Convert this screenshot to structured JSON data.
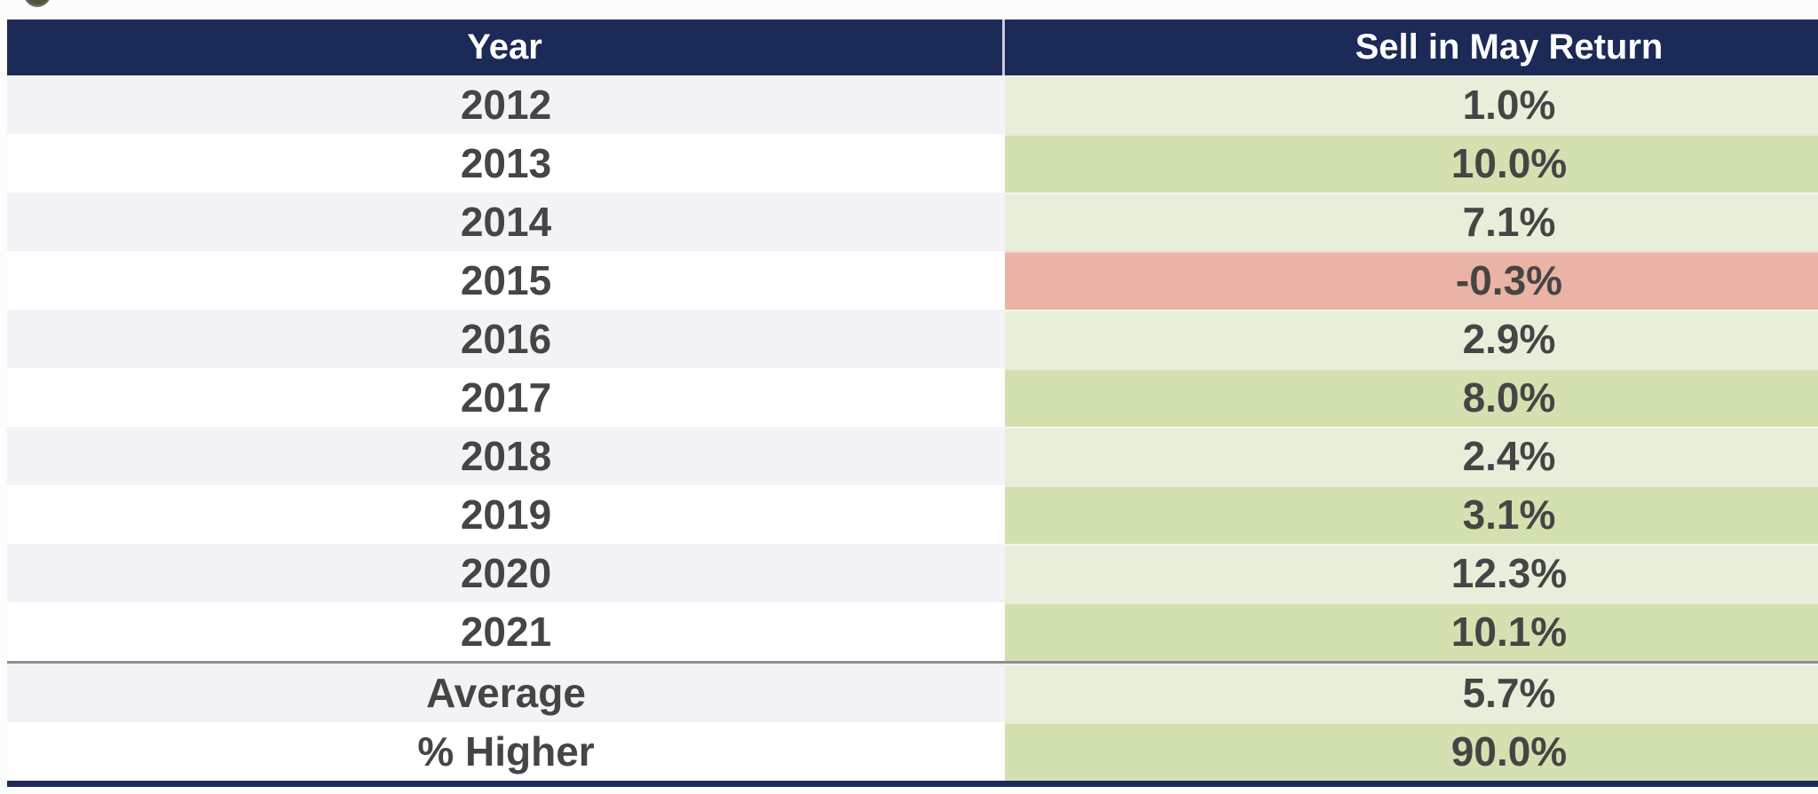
{
  "theme": {
    "page-bg": "#fcfcfd",
    "navy": "#1b2a57",
    "header-text": "#ffffff",
    "row-stripe": "#f3f3f7",
    "row-plain": "#ffffff",
    "green-light": "#e7efda",
    "green-dark": "#d3e1b1",
    "red": "#eab3a6",
    "cell-text": "#454545",
    "divider": "#8f8f93",
    "circle": "#50533e"
  },
  "table": {
    "headers": {
      "year": "Year",
      "value": "Sell in May Return"
    },
    "rows": [
      {
        "year": "2012",
        "value": "1.0%",
        "ybg": "stripe",
        "vtone": "green-light"
      },
      {
        "year": "2013",
        "value": "10.0%",
        "ybg": "plain",
        "vtone": "green-dark"
      },
      {
        "year": "2014",
        "value": "7.1%",
        "ybg": "stripe",
        "vtone": "green-light"
      },
      {
        "year": "2015",
        "value": "-0.3%",
        "ybg": "plain",
        "vtone": "red"
      },
      {
        "year": "2016",
        "value": "2.9%",
        "ybg": "stripe",
        "vtone": "green-light"
      },
      {
        "year": "2017",
        "value": "8.0%",
        "ybg": "plain",
        "vtone": "green-dark"
      },
      {
        "year": "2018",
        "value": "2.4%",
        "ybg": "stripe",
        "vtone": "green-light"
      },
      {
        "year": "2019",
        "value": "3.1%",
        "ybg": "plain",
        "vtone": "green-dark"
      },
      {
        "year": "2020",
        "value": "12.3%",
        "ybg": "stripe",
        "vtone": "green-light"
      },
      {
        "year": "2021",
        "value": "10.1%",
        "ybg": "plain",
        "vtone": "green-dark"
      }
    ],
    "summary_rows": [
      {
        "year": "Average",
        "value": "5.7%",
        "ybg": "stripe",
        "vtone": "green-light"
      },
      {
        "year": "% Higher",
        "value": "90.0%",
        "ybg": "plain",
        "vtone": "green-dark"
      }
    ]
  },
  "chart_data": {
    "type": "table",
    "columns": [
      "Year",
      "Sell in May Return"
    ],
    "years": [
      "2012",
      "2013",
      "2014",
      "2015",
      "2016",
      "2017",
      "2018",
      "2019",
      "2020",
      "2021"
    ],
    "returns_pct": [
      1.0,
      10.0,
      7.1,
      -0.3,
      2.9,
      8.0,
      2.4,
      3.1,
      12.3,
      10.1
    ],
    "summary": {
      "average_pct": 5.7,
      "percent_higher": 90.0
    },
    "highlight": {
      "negative_value_rows": [
        "2015"
      ],
      "positive_shading": "green",
      "negative_shading": "red"
    }
  }
}
